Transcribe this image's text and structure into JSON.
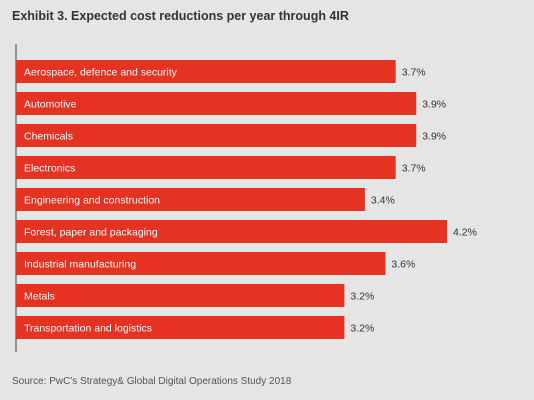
{
  "title": "Exhibit 3. Expected cost reductions per year through 4IR",
  "source": "Source: PwC's Strategy& Global Digital Operations Study 2018",
  "colors": {
    "bar": "#e53223",
    "axis": "#444444",
    "background": "#e5e5e6"
  },
  "chart_data": {
    "type": "bar",
    "orientation": "horizontal",
    "title": "Exhibit 3. Expected cost reductions per year through 4IR",
    "categories": [
      "Aerospace, defence and security",
      "Automotive",
      "Chemicals",
      "Electronics",
      "Engineering and construction",
      "Forest, paper and packaging",
      "Industrial manufacturing",
      "Metals",
      "Transportation and logistics"
    ],
    "values": [
      3.7,
      3.9,
      3.9,
      3.7,
      3.4,
      4.2,
      3.6,
      3.2,
      3.2
    ],
    "value_labels": [
      "3.7%",
      "3.9%",
      "3.9%",
      "3.7%",
      "3.4%",
      "4.2%",
      "3.6%",
      "3.2%",
      "3.2%"
    ],
    "xlim": [
      0,
      4.2
    ],
    "grid": false,
    "legend": "none"
  }
}
